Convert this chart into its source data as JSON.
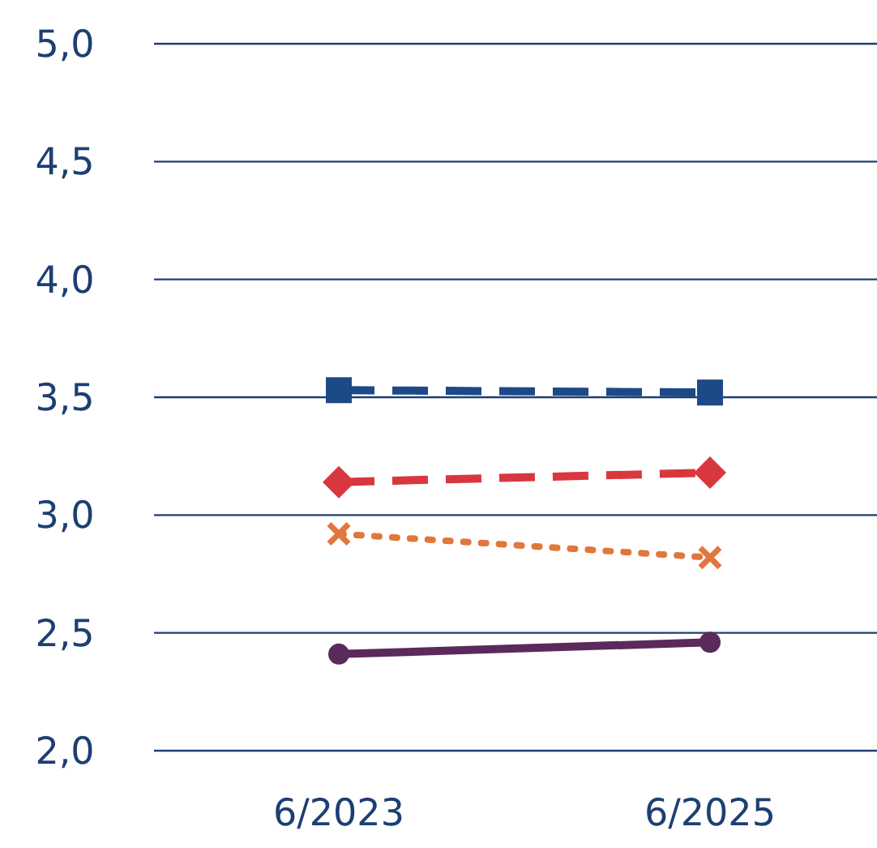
{
  "chart_data": {
    "type": "line",
    "categories": [
      "6/2023",
      "6/2025"
    ],
    "ylim": [
      2,
      5
    ],
    "yticks": [
      {
        "value": 2,
        "label": "2,0"
      },
      {
        "value": 2.5,
        "label": "2,5"
      },
      {
        "value": 3,
        "label": "3,0"
      },
      {
        "value": 3.5,
        "label": "3,5"
      },
      {
        "value": 4,
        "label": "4,0"
      },
      {
        "value": 4.5,
        "label": "4,5"
      },
      {
        "value": 5,
        "label": "5,0"
      }
    ],
    "grid": "y",
    "series": [
      {
        "color": "#1d4a87",
        "values": [
          3.53,
          3.52
        ],
        "marker": "square",
        "line_style": "dashed"
      },
      {
        "color": "#d9373f",
        "values": [
          3.14,
          3.18
        ],
        "marker": "diamond",
        "line_style": "dashed"
      },
      {
        "color": "#e0773c",
        "values": [
          2.92,
          2.82
        ],
        "marker": "cross",
        "line_style": "dotted"
      },
      {
        "color": "#5a2a5c",
        "values": [
          2.41,
          2.46
        ],
        "marker": "circle",
        "line_style": "solid"
      }
    ]
  }
}
